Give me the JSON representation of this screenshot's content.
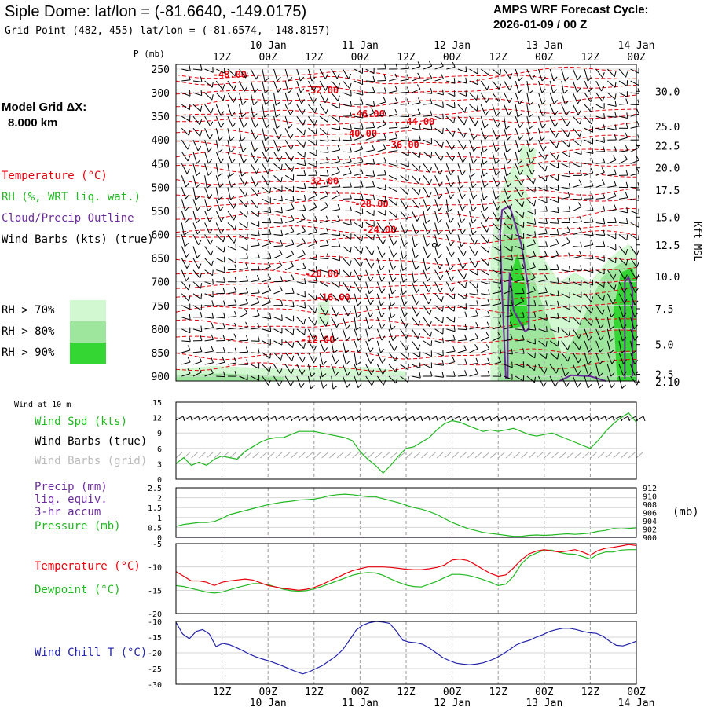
{
  "header": {
    "title": "Siple Dome:  lat/lon = (-81.6640, -149.0175)",
    "subtitle": "Grid Point (482, 455) lat/lon = (-81.6574, -148.8157)",
    "forecast_label": "AMPS WRF Forecast Cycle:",
    "forecast_cycle": "2026-01-09 / 00  Z"
  },
  "colors": {
    "temperature": "#e8000b",
    "rh": "#1fb81f",
    "cloud": "#6a2c9a",
    "wind_chill": "#2222aa",
    "grid": "#9a9a9a",
    "rh70": "#d2f8d2",
    "rh80": "#9ee69e",
    "rh90": "#33d633"
  },
  "legend": {
    "model_grid": "Model Grid ΔX:",
    "model_grid_value": "8.000 km",
    "temperature": "Temperature (°C)",
    "rh": "RH (%, WRT liq. wat.)",
    "cloud": "Cloud/Precip Outline",
    "wind": "Wind Barbs (kts) (true)",
    "rh_levels": [
      "RH > 70%",
      "RH > 80%",
      "RH > 90%"
    ]
  },
  "panel_labels": {
    "wind10m": "Wind at 10 m",
    "wind_spd": "Wind Spd (kts)",
    "wind_true": "Wind Barbs (true)",
    "wind_grid": "Wind Barbs (grid)",
    "precip1": "Precip (mm)",
    "precip2": "liq. equiv.",
    "precip3": "3-hr accum",
    "pressure": "Pressure (mb)",
    "pressure_units": "(mb)",
    "temp": "Temperature (°C)",
    "dew": "Dewpoint (°C)",
    "windchill": "Wind Chill T (°C)"
  },
  "time_axis": {
    "hour_labels": [
      "12Z",
      "00Z",
      "12Z",
      "00Z",
      "12Z",
      "00Z",
      "12Z",
      "00Z",
      "12Z",
      "00Z"
    ],
    "hour_positions_h": [
      12,
      24,
      36,
      48,
      60,
      72,
      84,
      96,
      108,
      120
    ],
    "date_labels": [
      "10 Jan",
      "11 Jan",
      "12 Jan",
      "13 Jan",
      "14 Jan"
    ],
    "date_positions_h": [
      24,
      48,
      72,
      96,
      120
    ],
    "range_h": [
      0,
      120
    ]
  },
  "chart_data": [
    {
      "type": "contour",
      "name": "upper-air cross section",
      "ylabel": "P (mb)",
      "y_ticks": [
        250,
        300,
        350,
        400,
        450,
        500,
        550,
        600,
        650,
        700,
        750,
        800,
        850,
        900
      ],
      "ylim": [
        240,
        910
      ],
      "right_label": "Kft MSL",
      "right_ticks": [
        {
          "label": "30.0",
          "p": 297
        },
        {
          "label": "25.0",
          "p": 371
        },
        {
          "label": "22.5",
          "p": 412
        },
        {
          "label": "20.0",
          "p": 459
        },
        {
          "label": "17.5",
          "p": 506
        },
        {
          "label": "15.0",
          "p": 563
        },
        {
          "label": "12.5",
          "p": 622
        },
        {
          "label": "10.0",
          "p": 689
        },
        {
          "label": "7.5",
          "p": 757
        },
        {
          "label": "5.0",
          "p": 833
        },
        {
          "label": "2.5",
          "p": 896
        },
        {
          "label": "2.10",
          "p": 912
        }
      ],
      "temperature_contour_labels": [
        {
          "text": "-48.00",
          "h": 14,
          "p": 262
        },
        {
          "text": "-52.00",
          "h": 38,
          "p": 295
        },
        {
          "text": "-46.00",
          "h": 50,
          "p": 345
        },
        {
          "text": "-44.00",
          "h": 63,
          "p": 361
        },
        {
          "text": "-40.00",
          "h": 48,
          "p": 386
        },
        {
          "text": "-36.00",
          "h": 59,
          "p": 410
        },
        {
          "text": "-32.00",
          "h": 38,
          "p": 487
        },
        {
          "text": "-28.00",
          "h": 51,
          "p": 535
        },
        {
          "text": "-24.00",
          "h": 53,
          "p": 590
        },
        {
          "text": "-20.00",
          "h": 38,
          "p": 683
        },
        {
          "text": "-16.00",
          "h": 41,
          "p": 733
        },
        {
          "text": "-12.00",
          "h": 37,
          "p": 823
        }
      ]
    },
    {
      "type": "line",
      "name": "10 m wind speed",
      "ylabel": "kts",
      "ylim": [
        0,
        15
      ],
      "y_ticks": [
        0,
        3,
        6,
        9,
        12,
        15
      ],
      "x": [
        0,
        2,
        4,
        6,
        8,
        10,
        12,
        14,
        16,
        18,
        20,
        22,
        24,
        26,
        28,
        30,
        32,
        34,
        36,
        38,
        40,
        42,
        44,
        46,
        48,
        50,
        52,
        54,
        56,
        58,
        60,
        62,
        64,
        66,
        68,
        70,
        72,
        74,
        76,
        78,
        80,
        82,
        84,
        86,
        88,
        90,
        92,
        94,
        96,
        98,
        100,
        102,
        104,
        106,
        108,
        110,
        112,
        114,
        116,
        118,
        120
      ],
      "values": [
        3.0,
        4.2,
        2.7,
        3.3,
        2.7,
        3.9,
        4.5,
        4.2,
        3.9,
        5.4,
        6.3,
        7.2,
        7.8,
        8.1,
        8.1,
        8.7,
        9.3,
        9.3,
        9.3,
        9.0,
        8.7,
        8.4,
        8.1,
        7.5,
        5.4,
        3.9,
        2.7,
        1.2,
        2.7,
        4.5,
        6.0,
        6.3,
        7.2,
        8.1,
        9.6,
        10.8,
        11.4,
        11.1,
        10.5,
        9.9,
        9.3,
        9.6,
        9.3,
        9.6,
        9.9,
        9.3,
        8.7,
        8.4,
        8.7,
        9.0,
        8.4,
        7.8,
        7.2,
        6.6,
        6.0,
        7.5,
        9.3,
        10.8,
        12.0,
        12.9,
        11.1
      ],
      "series_name": "Wind Spd"
    },
    {
      "type": "line",
      "name": "precip and pressure",
      "ylim": [
        0,
        2.5
      ],
      "y_ticks": [
        0,
        0.5,
        1,
        1.5,
        2,
        2.5
      ],
      "y2lim": [
        900,
        912
      ],
      "y2_ticks": [
        900,
        902,
        904,
        906,
        908,
        910,
        912
      ],
      "precip_values": [
        0,
        0,
        0,
        0,
        0,
        0,
        0,
        0,
        0,
        0,
        0,
        0,
        0,
        0,
        0,
        0,
        0,
        0,
        0,
        0,
        0,
        0,
        0,
        0,
        0,
        0,
        0,
        0,
        0,
        0,
        0,
        0,
        0,
        0,
        0,
        0,
        0,
        0,
        0,
        0,
        0,
        0,
        0,
        0,
        0,
        0,
        0,
        0,
        0,
        0,
        0,
        0,
        0,
        0,
        0,
        0,
        0,
        0,
        0,
        0,
        0
      ],
      "pressure_values": [
        0.55,
        0.65,
        0.7,
        0.75,
        0.75,
        0.8,
        0.95,
        1.15,
        1.25,
        1.35,
        1.45,
        1.55,
        1.65,
        1.72,
        1.78,
        1.82,
        1.88,
        1.9,
        1.93,
        2.0,
        2.1,
        2.15,
        2.18,
        2.15,
        2.1,
        2.05,
        2.05,
        1.95,
        1.85,
        1.75,
        1.62,
        1.5,
        1.42,
        1.3,
        1.15,
        0.95,
        0.75,
        0.6,
        0.45,
        0.35,
        0.25,
        0.2,
        0.15,
        0.1,
        0.05,
        0.05,
        0.1,
        0.12,
        0.1,
        0.12,
        0.15,
        0.18,
        0.15,
        0.18,
        0.22,
        0.3,
        0.35,
        0.45,
        0.42,
        0.45,
        0.48
      ]
    },
    {
      "type": "line",
      "name": "temperature and dewpoint",
      "ylim": [
        -20,
        -5
      ],
      "y_ticks": [
        -20,
        -15,
        -10,
        -5
      ],
      "series": [
        {
          "name": "Temperature",
          "values": [
            -11.0,
            -12.0,
            -13.0,
            -13.0,
            -13.3,
            -14.0,
            -13.3,
            -13.0,
            -12.8,
            -12.6,
            -12.8,
            -13.4,
            -14.0,
            -14.3,
            -14.6,
            -14.8,
            -15.0,
            -14.8,
            -14.4,
            -13.8,
            -13.0,
            -12.3,
            -11.5,
            -10.8,
            -10.4,
            -10.0,
            -10.0,
            -10.0,
            -10.1,
            -10.3,
            -10.5,
            -10.6,
            -10.6,
            -10.4,
            -10.1,
            -9.6,
            -8.5,
            -8.3,
            -8.6,
            -9.5,
            -10.5,
            -11.4,
            -12.0,
            -11.7,
            -10.2,
            -8.5,
            -7.2,
            -6.6,
            -6.3,
            -6.6,
            -6.8,
            -6.6,
            -6.3,
            -6.8,
            -7.5,
            -6.5,
            -6.0,
            -5.8,
            -5.5,
            -5.2,
            -5.4
          ]
        },
        {
          "name": "Dewpoint",
          "values": [
            -14.0,
            -14.2,
            -14.6,
            -15.0,
            -15.4,
            -15.6,
            -15.4,
            -14.9,
            -14.4,
            -14.0,
            -13.6,
            -13.6,
            -13.8,
            -14.3,
            -14.8,
            -15.1,
            -15.2,
            -15.1,
            -14.7,
            -14.2,
            -13.6,
            -13.0,
            -12.4,
            -11.8,
            -11.4,
            -11.2,
            -11.3,
            -11.8,
            -12.6,
            -13.3,
            -13.9,
            -14.2,
            -14.3,
            -13.7,
            -13.1,
            -12.3,
            -11.6,
            -11.6,
            -11.8,
            -12.2,
            -12.7,
            -13.3,
            -14.0,
            -13.7,
            -12.0,
            -9.4,
            -7.8,
            -7.0,
            -6.4,
            -6.4,
            -6.9,
            -7.2,
            -7.3,
            -7.8,
            -8.3,
            -7.3,
            -6.8,
            -6.8,
            -6.4,
            -6.3,
            -6.3
          ]
        }
      ]
    },
    {
      "type": "line",
      "name": "wind chill",
      "ylim": [
        -30,
        -10
      ],
      "y_ticks": [
        -30,
        -25,
        -20,
        -15,
        -10
      ],
      "values": [
        -10.3,
        -14.0,
        -15.5,
        -13.2,
        -12.6,
        -14.0,
        -18.0,
        -17.0,
        -17.4,
        -18.3,
        -19.3,
        -20.4,
        -21.3,
        -22.0,
        -22.6,
        -23.4,
        -24.2,
        -25.1,
        -26.0,
        -26.7,
        -26.0,
        -25.0,
        -24.0,
        -22.5,
        -21.0,
        -19.0,
        -16.0,
        -12.8,
        -11.2,
        -10.4,
        -10.0,
        -10.2,
        -10.6,
        -13.0,
        -16.0,
        -16.6,
        -16.8,
        -17.3,
        -18.5,
        -20.0,
        -21.5,
        -22.5,
        -23.3,
        -23.6,
        -23.8,
        -23.6,
        -23.2,
        -22.5,
        -21.6,
        -20.4,
        -19.0,
        -17.5,
        -16.6,
        -16.0,
        -15.0,
        -14.2,
        -13.2,
        -12.6,
        -12.2,
        -12.2,
        -12.6,
        -13.2,
        -13.6,
        -13.8,
        -14.7,
        -16.3,
        -17.6,
        -17.8,
        -17.1,
        -16.3
      ]
    }
  ]
}
